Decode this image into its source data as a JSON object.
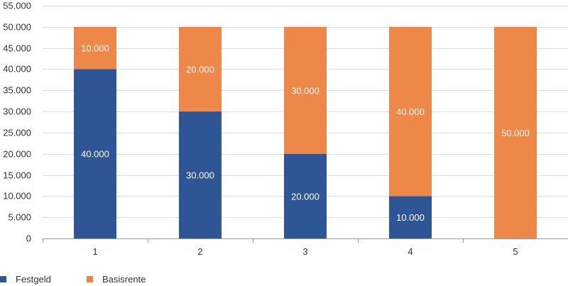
{
  "chart_data": {
    "type": "bar",
    "stacked": true,
    "categories": [
      "1",
      "2",
      "3",
      "4",
      "5"
    ],
    "series": [
      {
        "name": "Festgeld",
        "values": [
          40000,
          30000,
          20000,
          10000,
          0
        ],
        "labels": [
          "40.000",
          "30.000",
          "20.000",
          "10.000",
          ""
        ],
        "color": "#2e5596"
      },
      {
        "name": "Basisrente",
        "values": [
          10000,
          20000,
          30000,
          40000,
          50000
        ],
        "labels": [
          "10.000",
          "20.000",
          "30.000",
          "40.000",
          "50.000"
        ],
        "color": "#ed8849"
      }
    ],
    "ylim": [
      0,
      55000
    ],
    "yticks": [
      0,
      5000,
      10000,
      15000,
      20000,
      25000,
      30000,
      35000,
      40000,
      45000,
      50000,
      55000
    ],
    "ytick_labels": [
      "0",
      "5.000",
      "10.000",
      "15.000",
      "20.000",
      "25.000",
      "30.000",
      "35.000",
      "40.000",
      "45.000",
      "50.000",
      "55.000"
    ],
    "grid": true,
    "legend_position": "bottom-left",
    "gridline_color": "#dddddd",
    "axis_color": "#999999"
  }
}
